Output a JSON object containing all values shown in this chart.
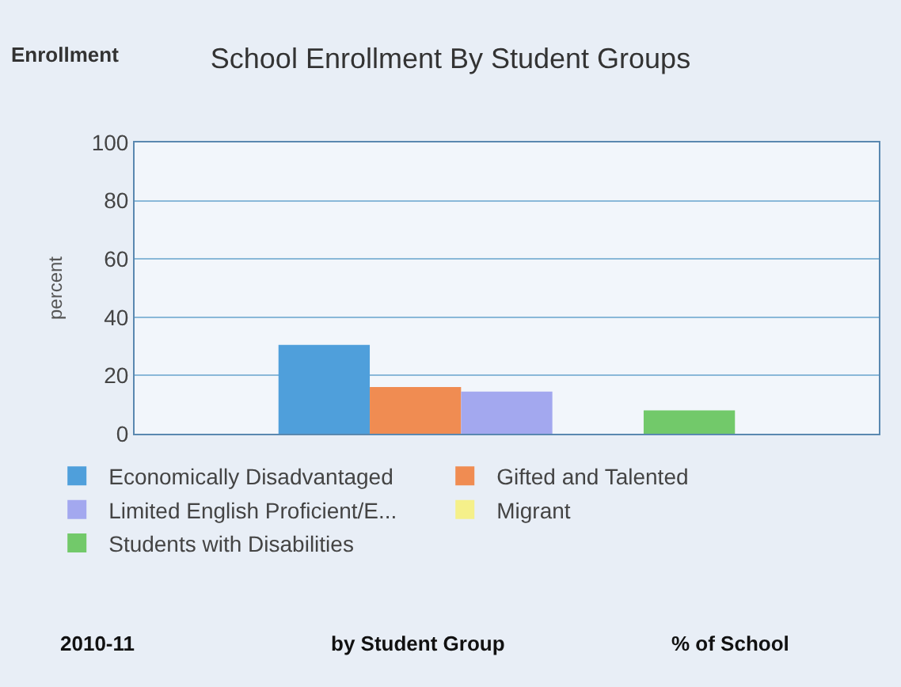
{
  "chart_data": {
    "type": "bar",
    "title": "School Enrollment By Student Groups",
    "ylabel": "percent",
    "categories": [
      null
    ],
    "series": [
      {
        "name": "Economically Disadvantaged",
        "color": "#4f9fdb",
        "values": [
          30.5
        ]
      },
      {
        "name": "Gifted and Talented",
        "color": "#f08c52",
        "values": [
          16
        ]
      },
      {
        "name": "Limited English Proficient/E...",
        "color": "#a3a8ef",
        "values": [
          14.5
        ]
      },
      {
        "name": "Migrant",
        "color": "#f5f08a",
        "values": [
          0
        ]
      },
      {
        "name": "Students with Disabilities",
        "color": "#72c96a",
        "values": [
          8
        ]
      }
    ],
    "ylim": [
      0,
      100
    ],
    "yticks": [
      0,
      20,
      40,
      60,
      80,
      100
    ],
    "grid": "y",
    "legend": "bottom",
    "annotations": [
      "Enrollment",
      "2010-11",
      "by Student Group",
      "% of School"
    ]
  }
}
